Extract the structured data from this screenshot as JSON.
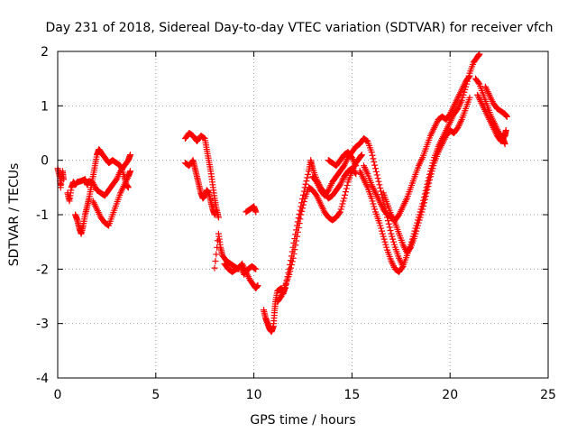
{
  "chart_data": {
    "type": "scatter",
    "title": "Day 231 of 2018, Sidereal Day-to-day VTEC variation (SDTVAR) for receiver vfch",
    "xlabel": "GPS time / hours",
    "ylabel": "SDTVAR / TECUs",
    "xlim": [
      0,
      25
    ],
    "ylim": [
      -4,
      2
    ],
    "xticks": [
      "0",
      "5",
      "10",
      "15",
      "20",
      "25"
    ],
    "yticks": [
      "-4",
      "-3",
      "-2",
      "-1",
      "0",
      "1",
      "2"
    ],
    "grid": true,
    "marker": "+",
    "color": "#ff0000",
    "series": [
      {
        "points": [
          [
            0.0,
            -0.15
          ],
          [
            0.1,
            -0.3
          ],
          [
            0.15,
            -0.5
          ],
          [
            0.25,
            -0.2
          ],
          [
            0.3,
            -0.35
          ]
        ]
      },
      {
        "points": [
          [
            0.5,
            -0.6
          ],
          [
            0.6,
            -0.75
          ],
          [
            0.7,
            -0.5
          ],
          [
            0.8,
            -0.4
          ],
          [
            0.9,
            -0.45
          ],
          [
            1.0,
            -0.4
          ],
          [
            1.2,
            -0.38
          ],
          [
            1.4,
            -0.35
          ],
          [
            1.5,
            -0.45
          ],
          [
            1.6,
            -0.38
          ],
          [
            1.8,
            -0.42
          ],
          [
            2.0,
            -0.55
          ],
          [
            2.2,
            -0.6
          ],
          [
            2.4,
            -0.65
          ],
          [
            2.6,
            -0.55
          ],
          [
            2.8,
            -0.45
          ],
          [
            3.0,
            -0.35
          ],
          [
            3.2,
            -0.2
          ],
          [
            3.4,
            -0.1
          ],
          [
            3.6,
            0.0
          ],
          [
            3.7,
            0.1
          ]
        ]
      },
      {
        "points": [
          [
            0.9,
            -1.0
          ],
          [
            1.0,
            -1.1
          ],
          [
            1.1,
            -1.25
          ],
          [
            1.2,
            -1.35
          ],
          [
            1.3,
            -1.2
          ],
          [
            1.4,
            -1.0
          ],
          [
            1.5,
            -0.85
          ],
          [
            1.6,
            -0.7
          ],
          [
            1.7,
            -0.5
          ],
          [
            1.8,
            -0.3
          ],
          [
            1.9,
            -0.1
          ],
          [
            2.0,
            0.1
          ],
          [
            2.1,
            0.2
          ],
          [
            2.2,
            0.15
          ],
          [
            2.4,
            0.05
          ],
          [
            2.6,
            -0.05
          ],
          [
            2.8,
            0.0
          ],
          [
            3.0,
            -0.05
          ],
          [
            3.2,
            -0.1
          ],
          [
            3.4,
            -0.3
          ],
          [
            3.5,
            -0.45
          ],
          [
            3.6,
            -0.5
          ]
        ]
      },
      {
        "points": [
          [
            1.8,
            -0.75
          ],
          [
            2.0,
            -0.9
          ],
          [
            2.2,
            -1.05
          ],
          [
            2.4,
            -1.15
          ],
          [
            2.6,
            -1.2
          ],
          [
            2.8,
            -1.0
          ],
          [
            3.0,
            -0.8
          ],
          [
            3.2,
            -0.6
          ],
          [
            3.4,
            -0.45
          ],
          [
            3.6,
            -0.3
          ],
          [
            3.7,
            -0.2
          ]
        ]
      },
      {
        "points": [
          [
            6.5,
            0.4
          ],
          [
            6.7,
            0.5
          ],
          [
            6.9,
            0.45
          ],
          [
            7.1,
            0.35
          ],
          [
            7.3,
            0.45
          ],
          [
            7.5,
            0.4
          ],
          [
            7.6,
            0.2
          ],
          [
            7.7,
            0.0
          ],
          [
            7.8,
            -0.2
          ],
          [
            7.9,
            -0.45
          ],
          [
            8.0,
            -0.7
          ],
          [
            8.1,
            -0.9
          ],
          [
            8.2,
            -1.05
          ]
        ]
      },
      {
        "points": [
          [
            6.5,
            -0.05
          ],
          [
            6.7,
            -0.1
          ],
          [
            6.9,
            0.0
          ],
          [
            7.0,
            -0.15
          ],
          [
            7.1,
            -0.3
          ],
          [
            7.2,
            -0.45
          ],
          [
            7.3,
            -0.6
          ],
          [
            7.4,
            -0.7
          ],
          [
            7.5,
            -0.65
          ],
          [
            7.6,
            -0.55
          ],
          [
            7.7,
            -0.6
          ],
          [
            7.8,
            -0.75
          ],
          [
            7.9,
            -0.9
          ],
          [
            8.0,
            -1.0
          ]
        ]
      },
      {
        "points": [
          [
            8.0,
            -1.98
          ],
          [
            8.2,
            -1.35
          ],
          [
            8.3,
            -1.6
          ],
          [
            8.4,
            -1.75
          ],
          [
            8.6,
            -1.85
          ],
          [
            8.8,
            -1.9
          ],
          [
            9.0,
            -1.95
          ],
          [
            9.2,
            -2.0
          ],
          [
            9.4,
            -1.9
          ],
          [
            9.6,
            -2.05
          ],
          [
            9.8,
            -2.2
          ],
          [
            10.0,
            -2.3
          ],
          [
            10.1,
            -2.35
          ],
          [
            10.2,
            -2.3
          ]
        ]
      },
      {
        "points": [
          [
            8.5,
            -1.9
          ],
          [
            8.7,
            -2.0
          ],
          [
            8.9,
            -2.05
          ],
          [
            9.1,
            -2.0
          ],
          [
            9.3,
            -1.95
          ],
          [
            9.5,
            -2.1
          ],
          [
            9.7,
            -2.0
          ],
          [
            9.9,
            -1.95
          ],
          [
            10.1,
            -2.0
          ]
        ]
      },
      {
        "points": [
          [
            9.6,
            -0.95
          ],
          [
            9.8,
            -0.9
          ],
          [
            10.0,
            -0.85
          ],
          [
            10.1,
            -0.95
          ]
        ]
      },
      {
        "points": [
          [
            10.5,
            -2.75
          ],
          [
            10.6,
            -2.9
          ],
          [
            10.7,
            -3.0
          ],
          [
            10.8,
            -3.1
          ],
          [
            10.9,
            -3.15
          ],
          [
            11.0,
            -3.05
          ],
          [
            11.05,
            -2.8
          ],
          [
            11.1,
            -2.6
          ],
          [
            11.2,
            -2.4
          ],
          [
            11.4,
            -2.35
          ],
          [
            11.5,
            -2.45
          ],
          [
            11.6,
            -2.3
          ],
          [
            11.8,
            -2.1
          ],
          [
            12.0,
            -1.8
          ],
          [
            12.2,
            -1.4
          ],
          [
            12.4,
            -1.0
          ],
          [
            12.6,
            -0.7
          ],
          [
            12.8,
            -0.5
          ],
          [
            13.0,
            -0.55
          ],
          [
            13.2,
            -0.65
          ],
          [
            13.4,
            -0.8
          ],
          [
            13.6,
            -0.95
          ],
          [
            13.8,
            -1.05
          ],
          [
            14.0,
            -1.1
          ],
          [
            14.2,
            -1.05
          ],
          [
            14.4,
            -0.95
          ],
          [
            14.6,
            -0.7
          ],
          [
            14.8,
            -0.4
          ],
          [
            15.0,
            -0.2
          ],
          [
            15.2,
            -0.05
          ],
          [
            15.4,
            0.05
          ],
          [
            15.5,
            0.1
          ]
        ]
      },
      {
        "points": [
          [
            11.2,
            -2.6
          ],
          [
            11.4,
            -2.5
          ],
          [
            11.6,
            -2.35
          ],
          [
            11.8,
            -2.0
          ],
          [
            12.0,
            -1.6
          ],
          [
            12.2,
            -1.2
          ],
          [
            12.4,
            -0.85
          ],
          [
            12.6,
            -0.5
          ],
          [
            12.8,
            -0.2
          ],
          [
            12.9,
            0.0
          ],
          [
            13.0,
            -0.15
          ],
          [
            13.2,
            -0.35
          ],
          [
            13.4,
            -0.5
          ],
          [
            13.6,
            -0.6
          ],
          [
            13.8,
            -0.7
          ],
          [
            14.0,
            -0.65
          ],
          [
            14.2,
            -0.55
          ],
          [
            14.4,
            -0.45
          ],
          [
            14.6,
            -0.3
          ],
          [
            14.8,
            -0.2
          ],
          [
            15.0,
            -0.15
          ],
          [
            15.2,
            -0.25
          ]
        ]
      },
      {
        "points": [
          [
            13.0,
            -0.3
          ],
          [
            13.2,
            -0.4
          ],
          [
            13.4,
            -0.55
          ],
          [
            13.6,
            -0.65
          ],
          [
            13.8,
            -0.55
          ],
          [
            14.0,
            -0.4
          ],
          [
            14.2,
            -0.3
          ],
          [
            14.4,
            -0.2
          ],
          [
            14.6,
            -0.1
          ],
          [
            14.8,
            0.05
          ],
          [
            15.0,
            0.15
          ],
          [
            15.2,
            0.25
          ],
          [
            15.4,
            0.3
          ],
          [
            15.6,
            0.4
          ],
          [
            15.8,
            0.35
          ],
          [
            16.0,
            0.15
          ],
          [
            16.2,
            -0.15
          ],
          [
            16.4,
            -0.45
          ],
          [
            16.6,
            -0.75
          ],
          [
            16.8,
            -1.05
          ],
          [
            17.0,
            -1.35
          ],
          [
            17.2,
            -1.6
          ],
          [
            17.4,
            -1.8
          ],
          [
            17.6,
            -1.95
          ]
        ]
      },
      {
        "points": [
          [
            13.8,
            0.0
          ],
          [
            14.0,
            -0.05
          ],
          [
            14.2,
            -0.1
          ],
          [
            14.4,
            0.0
          ],
          [
            14.6,
            0.1
          ],
          [
            14.8,
            0.15
          ],
          [
            15.0,
            0.05
          ],
          [
            15.2,
            -0.1
          ]
        ]
      },
      {
        "points": [
          [
            15.4,
            -0.2
          ],
          [
            15.6,
            -0.35
          ],
          [
            15.8,
            -0.5
          ],
          [
            16.0,
            -0.7
          ],
          [
            16.2,
            -0.95
          ],
          [
            16.4,
            -1.15
          ],
          [
            16.6,
            -1.4
          ],
          [
            16.8,
            -1.65
          ],
          [
            17.0,
            -1.85
          ],
          [
            17.2,
            -2.0
          ],
          [
            17.4,
            -2.05
          ],
          [
            17.6,
            -1.95
          ],
          [
            17.8,
            -1.75
          ],
          [
            18.0,
            -1.55
          ],
          [
            18.2,
            -1.3
          ],
          [
            18.4,
            -1.05
          ],
          [
            18.6,
            -0.8
          ],
          [
            18.8,
            -0.5
          ],
          [
            19.0,
            -0.2
          ],
          [
            19.2,
            0.05
          ],
          [
            19.4,
            0.25
          ],
          [
            19.6,
            0.4
          ],
          [
            19.8,
            0.55
          ],
          [
            20.0,
            0.7
          ],
          [
            20.2,
            0.85
          ],
          [
            20.4,
            0.95
          ],
          [
            20.6,
            1.1
          ],
          [
            20.8,
            1.35
          ],
          [
            21.0,
            1.6
          ],
          [
            21.2,
            1.8
          ],
          [
            21.4,
            1.9
          ],
          [
            21.5,
            1.95
          ]
        ]
      },
      {
        "points": [
          [
            15.6,
            -0.1
          ],
          [
            15.8,
            -0.25
          ],
          [
            16.0,
            -0.45
          ],
          [
            16.2,
            -0.6
          ],
          [
            16.4,
            -0.75
          ],
          [
            16.6,
            -0.9
          ],
          [
            16.8,
            -1.0
          ],
          [
            17.0,
            -1.05
          ],
          [
            17.2,
            -1.1
          ],
          [
            17.4,
            -1.0
          ],
          [
            17.6,
            -0.85
          ],
          [
            17.8,
            -0.7
          ],
          [
            18.0,
            -0.5
          ],
          [
            18.2,
            -0.3
          ],
          [
            18.4,
            -0.1
          ],
          [
            18.6,
            0.05
          ],
          [
            18.8,
            0.25
          ],
          [
            19.0,
            0.45
          ],
          [
            19.2,
            0.6
          ],
          [
            19.4,
            0.75
          ],
          [
            19.6,
            0.8
          ],
          [
            19.8,
            0.75
          ],
          [
            20.0,
            0.85
          ],
          [
            20.2,
            1.0
          ],
          [
            20.4,
            1.15
          ],
          [
            20.6,
            1.3
          ],
          [
            20.8,
            1.45
          ],
          [
            21.0,
            1.55
          ]
        ]
      },
      {
        "points": [
          [
            16.6,
            -0.6
          ],
          [
            16.8,
            -0.8
          ],
          [
            17.0,
            -1.0
          ],
          [
            17.2,
            -1.15
          ],
          [
            17.4,
            -1.35
          ],
          [
            17.6,
            -1.55
          ],
          [
            17.8,
            -1.7
          ],
          [
            18.0,
            -1.6
          ],
          [
            18.2,
            -1.4
          ],
          [
            18.4,
            -1.15
          ],
          [
            18.6,
            -0.9
          ],
          [
            18.8,
            -0.6
          ],
          [
            19.0,
            -0.3
          ],
          [
            19.2,
            -0.05
          ],
          [
            19.4,
            0.15
          ],
          [
            19.6,
            0.3
          ],
          [
            19.8,
            0.45
          ],
          [
            20.0,
            0.55
          ],
          [
            20.2,
            0.5
          ],
          [
            20.4,
            0.6
          ],
          [
            20.6,
            0.75
          ],
          [
            20.8,
            0.95
          ],
          [
            21.0,
            1.15
          ]
        ]
      },
      {
        "points": [
          [
            21.3,
            1.5
          ],
          [
            21.5,
            1.4
          ],
          [
            21.7,
            1.2
          ],
          [
            21.9,
            1.0
          ],
          [
            22.1,
            0.8
          ],
          [
            22.3,
            0.65
          ],
          [
            22.5,
            0.5
          ],
          [
            22.7,
            0.4
          ],
          [
            22.8,
            0.3
          ]
        ]
      },
      {
        "points": [
          [
            21.4,
            1.2
          ],
          [
            21.6,
            1.05
          ],
          [
            21.8,
            0.9
          ],
          [
            22.0,
            0.75
          ],
          [
            22.2,
            0.6
          ],
          [
            22.4,
            0.45
          ],
          [
            22.6,
            0.35
          ],
          [
            22.8,
            0.45
          ],
          [
            22.85,
            0.55
          ]
        ]
      },
      {
        "points": [
          [
            21.8,
            1.35
          ],
          [
            22.0,
            1.2
          ],
          [
            22.2,
            1.05
          ],
          [
            22.4,
            0.95
          ],
          [
            22.6,
            0.9
          ],
          [
            22.8,
            0.85
          ],
          [
            22.9,
            0.8
          ]
        ]
      }
    ]
  }
}
